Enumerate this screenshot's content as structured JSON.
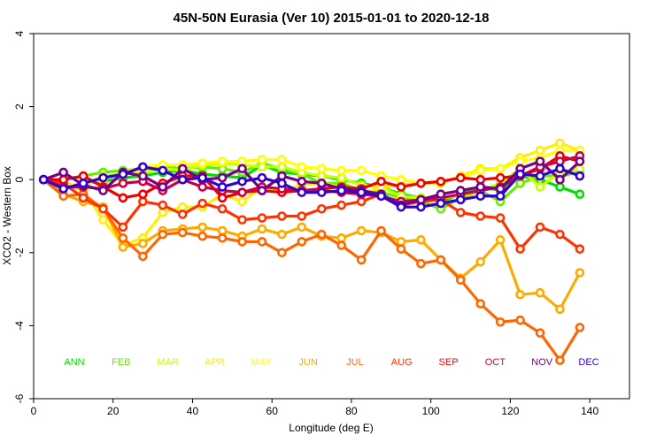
{
  "chart_data": {
    "type": "line",
    "title": "45N-50N Eurasia (Ver 10)   2015-01-01 to 2020-12-18",
    "xlabel": "Longitude (deg E)",
    "ylabel": "XCO2 - Western Box",
    "xlim": [
      0,
      150
    ],
    "ylim": [
      -6,
      4
    ],
    "xticks": [
      0,
      20,
      40,
      60,
      80,
      100,
      120,
      140
    ],
    "yticks": [
      -6,
      -4,
      -2,
      0,
      2,
      4
    ],
    "grid": false,
    "legend_placement": "bottom",
    "x": [
      2.5,
      7.5,
      12.5,
      17.5,
      22.5,
      27.5,
      32.5,
      37.5,
      42.5,
      47.5,
      52.5,
      57.5,
      62.5,
      67.5,
      72.5,
      77.5,
      82.5,
      87.5,
      92.5,
      97.5,
      102.5,
      107.5,
      112.5,
      117.5,
      122.5,
      127.5,
      132.5,
      137.5
    ],
    "series": [
      {
        "name": "ANN",
        "color": "#00dd00",
        "values": [
          0,
          -0.2,
          -0.1,
          -0.05,
          0.05,
          0.1,
          0.2,
          0.25,
          0.15,
          0.1,
          0.05,
          0.4,
          0.2,
          0.15,
          0.1,
          0.0,
          -0.1,
          -0.2,
          -0.4,
          -0.5,
          -0.6,
          -0.4,
          -0.2,
          -0.3,
          0.1,
          0.0,
          -0.2,
          -0.4
        ]
      },
      {
        "name": "FEB",
        "color": "#66ee00",
        "values": [
          0,
          0.0,
          0.1,
          0.2,
          0.25,
          0.3,
          0.35,
          0.3,
          0.35,
          0.3,
          0.2,
          0.45,
          0.3,
          0.15,
          -0.1,
          -0.1,
          -0.3,
          -0.35,
          -0.5,
          -0.6,
          -0.8,
          -0.5,
          -0.3,
          -0.6,
          -0.1,
          0.1,
          0.1,
          0.2
        ]
      },
      {
        "name": "MAR",
        "color": "#ccff00",
        "values": [
          0,
          -0.1,
          -0.2,
          0.1,
          0.15,
          0.2,
          0.3,
          0.25,
          0.4,
          0.45,
          0.4,
          0.35,
          0.35,
          0.2,
          0.1,
          0.05,
          -0.15,
          -0.2,
          -0.45,
          -0.5,
          -0.5,
          -0.45,
          -0.3,
          -0.1,
          0.3,
          -0.2,
          0.2,
          0.3
        ]
      },
      {
        "name": "APR",
        "color": "#ffee00",
        "values": [
          0,
          -0.1,
          -0.3,
          -1.1,
          -1.8,
          -1.6,
          -0.9,
          -0.75,
          -0.75,
          -0.4,
          -0.6,
          -0.2,
          -0.3,
          -0.15,
          -0.1,
          -0.2,
          -0.4,
          -0.2,
          -0.15,
          -0.1,
          -0.1,
          0.1,
          0.3,
          0.3,
          0.6,
          0.8,
          1.0,
          0.8
        ]
      },
      {
        "name": "MAY",
        "color": "#ffff00",
        "values": [
          0,
          -0.2,
          -0.1,
          0.0,
          0.2,
          0.35,
          0.4,
          0.4,
          0.45,
          0.5,
          0.5,
          0.55,
          0.55,
          0.35,
          0.3,
          0.25,
          0.25,
          0.1,
          0.0,
          -0.1,
          -0.05,
          0.05,
          0.25,
          0.3,
          0.5,
          0.6,
          0.8,
          0.8
        ]
      },
      {
        "name": "JUN",
        "color": "#ffaa00",
        "values": [
          0,
          -0.4,
          -0.6,
          -0.75,
          -1.85,
          -1.75,
          -1.4,
          -1.35,
          -1.3,
          -1.4,
          -1.55,
          -1.35,
          -1.5,
          -1.3,
          -1.55,
          -1.6,
          -1.4,
          -1.45,
          -1.7,
          -1.65,
          -2.2,
          -2.7,
          -2.25,
          -1.65,
          -3.15,
          -3.1,
          -3.55,
          -2.55
        ]
      },
      {
        "name": "JUL",
        "color": "#ff6600",
        "values": [
          0,
          -0.45,
          -0.4,
          -0.8,
          -1.6,
          -2.1,
          -1.5,
          -1.45,
          -1.55,
          -1.6,
          -1.7,
          -1.7,
          -2.0,
          -1.7,
          -1.5,
          -1.8,
          -2.2,
          -1.4,
          -1.9,
          -2.3,
          -2.2,
          -2.75,
          -3.4,
          -3.9,
          -3.85,
          -4.2,
          -4.95,
          -4.05
        ]
      },
      {
        "name": "AUG",
        "color": "#ff3300",
        "values": [
          0,
          -0.1,
          -0.5,
          -0.8,
          -1.3,
          -0.6,
          -0.7,
          -0.95,
          -0.65,
          -0.8,
          -1.1,
          -1.05,
          -1.0,
          -1.0,
          -0.8,
          -0.7,
          -0.6,
          -0.4,
          -0.7,
          -0.6,
          -0.55,
          -0.9,
          -1.0,
          -1.05,
          -1.9,
          -1.3,
          -1.5,
          -1.9
        ]
      },
      {
        "name": "SEP",
        "color": "#ee0000",
        "values": [
          0,
          0.0,
          0.1,
          -0.2,
          -0.5,
          -0.4,
          -0.1,
          0.1,
          0.1,
          -0.5,
          -0.35,
          -0.3,
          -0.35,
          -0.3,
          -0.25,
          -0.2,
          -0.25,
          -0.05,
          -0.2,
          -0.1,
          -0.05,
          0.05,
          0.0,
          0.05,
          0.1,
          0.3,
          0.65,
          0.5
        ]
      },
      {
        "name": "OCT",
        "color": "#cc0044",
        "values": [
          0,
          -0.2,
          -0.2,
          -0.25,
          -0.1,
          -0.05,
          -0.3,
          0.0,
          -0.2,
          -0.3,
          -0.35,
          -0.2,
          -0.25,
          -0.3,
          -0.3,
          -0.35,
          -0.4,
          -0.45,
          -0.6,
          -0.55,
          -0.5,
          -0.4,
          -0.3,
          -0.2,
          0.1,
          0.35,
          0.5,
          0.65
        ]
      },
      {
        "name": "NOV",
        "color": "#770088",
        "values": [
          0,
          0.2,
          -0.15,
          -0.3,
          0.2,
          0.1,
          -0.2,
          0.3,
          0.0,
          0.05,
          0.3,
          -0.3,
          0.1,
          -0.05,
          -0.1,
          -0.25,
          -0.3,
          -0.4,
          -0.7,
          -0.55,
          -0.4,
          -0.3,
          -0.2,
          -0.25,
          0.3,
          0.5,
          0.0,
          0.5
        ]
      },
      {
        "name": "DEC",
        "color": "#3300cc",
        "values": [
          0,
          -0.25,
          -0.1,
          0.05,
          0.15,
          0.35,
          0.25,
          0.0,
          0.05,
          -0.2,
          -0.05,
          0.05,
          -0.1,
          -0.35,
          -0.35,
          -0.3,
          -0.35,
          -0.45,
          -0.75,
          -0.75,
          -0.65,
          -0.55,
          -0.45,
          -0.45,
          0.15,
          0.1,
          0.3,
          0.1
        ]
      }
    ]
  }
}
